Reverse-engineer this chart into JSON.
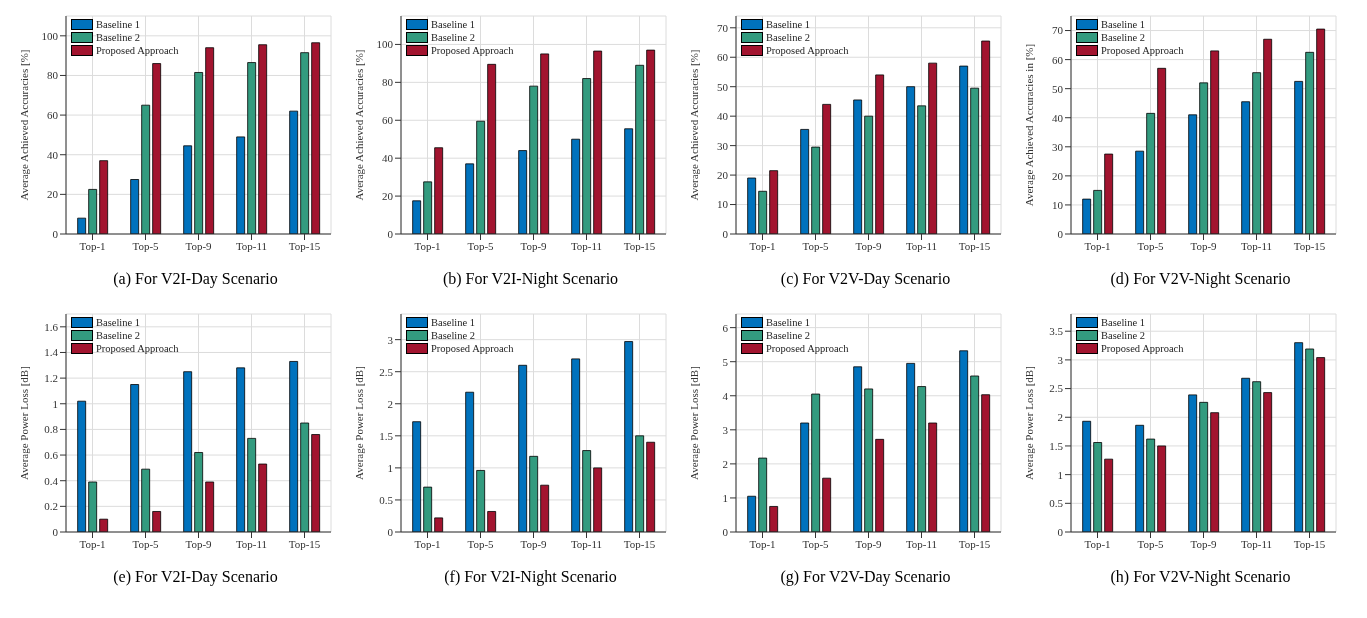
{
  "chart_data": [
    {
      "type": "bar",
      "title": "(a) For V2I-Day Scenario",
      "ylabel": "Average Achieved Accuracies [%]",
      "categories": [
        "Top-1",
        "Top-5",
        "Top-9",
        "Top-11",
        "Top-15"
      ],
      "ylim": [
        0,
        110
      ],
      "yticks": [
        0,
        20,
        40,
        60,
        80,
        100
      ],
      "grid": true,
      "legend": "top left",
      "series": [
        {
          "name": "Baseline 1",
          "color": "#0072bd",
          "values": [
            8,
            27.5,
            44.5,
            49,
            62
          ]
        },
        {
          "name": "Baseline 2",
          "color": "#339b7f",
          "values": [
            22.5,
            65,
            81.5,
            86.5,
            91.5
          ]
        },
        {
          "name": "Proposed Approach",
          "color": "#a2142f",
          "values": [
            37,
            86,
            94,
            95.5,
            96.5
          ]
        }
      ]
    },
    {
      "type": "bar",
      "title": "(b) For V2I-Night Scenario",
      "ylabel": "Average Achieved Accuracies [%]",
      "categories": [
        "Top-1",
        "Top-5",
        "Top-9",
        "Top-11",
        "Top-15"
      ],
      "ylim": [
        0,
        115
      ],
      "yticks": [
        0,
        20,
        40,
        60,
        80,
        100
      ],
      "grid": true,
      "legend": "top left",
      "series": [
        {
          "name": "Baseline 1",
          "color": "#0072bd",
          "values": [
            17.5,
            37,
            44,
            50,
            55.5
          ]
        },
        {
          "name": "Baseline 2",
          "color": "#339b7f",
          "values": [
            27.5,
            59.5,
            78,
            82,
            89
          ]
        },
        {
          "name": "Proposed Approach",
          "color": "#a2142f",
          "values": [
            45.5,
            89.5,
            95,
            96.5,
            97
          ]
        }
      ]
    },
    {
      "type": "bar",
      "title": "(c) For V2V-Day Scenario",
      "ylabel": "Average Achieved Accuracies [%]",
      "categories": [
        "Top-1",
        "Top-5",
        "Top-9",
        "Top-11",
        "Top-15"
      ],
      "ylim": [
        0,
        74
      ],
      "yticks": [
        0,
        10,
        20,
        30,
        40,
        50,
        60,
        70
      ],
      "grid": true,
      "legend": "top left",
      "series": [
        {
          "name": "Baseline 1",
          "color": "#0072bd",
          "values": [
            19,
            35.5,
            45.5,
            50,
            57
          ]
        },
        {
          "name": "Baseline 2",
          "color": "#339b7f",
          "values": [
            14.5,
            29.5,
            40,
            43.5,
            49.5
          ]
        },
        {
          "name": "Proposed Approach",
          "color": "#a2142f",
          "values": [
            21.5,
            44,
            54,
            58,
            65.5
          ]
        }
      ]
    },
    {
      "type": "bar",
      "title": "(d) For V2V-Night Scenario",
      "ylabel": "Average Achieved Accuracies in [%]",
      "categories": [
        "Top-1",
        "Top-5",
        "Top-9",
        "Top-11",
        "Top-15"
      ],
      "ylim": [
        0,
        75
      ],
      "yticks": [
        0,
        10,
        20,
        30,
        40,
        50,
        60,
        70
      ],
      "grid": true,
      "legend": "top left",
      "series": [
        {
          "name": "Baseline 1",
          "color": "#0072bd",
          "values": [
            12,
            28.5,
            41,
            45.5,
            52.5
          ]
        },
        {
          "name": "Baseline 2",
          "color": "#339b7f",
          "values": [
            15,
            41.5,
            52,
            55.5,
            62.5
          ]
        },
        {
          "name": "Proposed Approach",
          "color": "#a2142f",
          "values": [
            27.5,
            57,
            63,
            67,
            70.5
          ]
        }
      ]
    },
    {
      "type": "bar",
      "title": "(e) For V2I-Day Scenario",
      "ylabel": "Average Power Loss [dB]",
      "categories": [
        "Top-1",
        "Top-5",
        "Top-9",
        "Top-11",
        "Top-15"
      ],
      "ylim": [
        0,
        1.7
      ],
      "yticks": [
        0,
        0.2,
        0.4,
        0.6,
        0.8,
        1,
        1.2,
        1.4,
        1.6
      ],
      "grid": true,
      "legend": "top left",
      "series": [
        {
          "name": "Baseline 1",
          "color": "#0072bd",
          "values": [
            1.02,
            1.15,
            1.25,
            1.28,
            1.33
          ]
        },
        {
          "name": "Baseline 2",
          "color": "#339b7f",
          "values": [
            0.39,
            0.49,
            0.62,
            0.73,
            0.85
          ]
        },
        {
          "name": "Proposed Approach",
          "color": "#a2142f",
          "values": [
            0.1,
            0.16,
            0.39,
            0.53,
            0.76
          ]
        }
      ]
    },
    {
      "type": "bar",
      "title": "(f) For V2I-Night Scenario",
      "ylabel": "Average Power Loss [dB]",
      "categories": [
        "Top-1",
        "Top-5",
        "Top-9",
        "Top-11",
        "Top-15"
      ],
      "ylim": [
        0,
        3.4
      ],
      "yticks": [
        0,
        0.5,
        1,
        1.5,
        2,
        2.5,
        3
      ],
      "grid": true,
      "legend": "top left",
      "series": [
        {
          "name": "Baseline 1",
          "color": "#0072bd",
          "values": [
            1.72,
            2.18,
            2.6,
            2.7,
            2.97
          ]
        },
        {
          "name": "Baseline 2",
          "color": "#339b7f",
          "values": [
            0.7,
            0.96,
            1.18,
            1.27,
            1.5
          ]
        },
        {
          "name": "Proposed Approach",
          "color": "#a2142f",
          "values": [
            0.22,
            0.32,
            0.73,
            1.0,
            1.4
          ]
        }
      ]
    },
    {
      "type": "bar",
      "title": "(g) For V2V-Day Scenario",
      "ylabel": "Average Power Loss [dB]",
      "categories": [
        "Top-1",
        "Top-5",
        "Top-9",
        "Top-11",
        "Top-15"
      ],
      "ylim": [
        0,
        6.4
      ],
      "yticks": [
        0,
        1,
        2,
        3,
        4,
        5,
        6
      ],
      "grid": true,
      "legend": "top left",
      "series": [
        {
          "name": "Baseline 1",
          "color": "#0072bd",
          "values": [
            1.05,
            3.2,
            4.85,
            4.95,
            5.32
          ]
        },
        {
          "name": "Baseline 2",
          "color": "#339b7f",
          "values": [
            2.17,
            4.05,
            4.2,
            4.27,
            4.58
          ]
        },
        {
          "name": "Proposed Approach",
          "color": "#a2142f",
          "values": [
            0.75,
            1.58,
            2.72,
            3.2,
            4.03
          ]
        }
      ]
    },
    {
      "type": "bar",
      "title": "(h) For V2V-Night Scenario",
      "ylabel": "Average Power Loss [dB]",
      "categories": [
        "Top-1",
        "Top-5",
        "Top-9",
        "Top-11",
        "Top-15"
      ],
      "ylim": [
        0,
        3.8
      ],
      "yticks": [
        0,
        0.5,
        1,
        1.5,
        2,
        2.5,
        3,
        3.5
      ],
      "grid": true,
      "legend": "top left",
      "series": [
        {
          "name": "Baseline 1",
          "color": "#0072bd",
          "values": [
            1.93,
            1.86,
            2.39,
            2.68,
            3.3
          ]
        },
        {
          "name": "Baseline 2",
          "color": "#339b7f",
          "values": [
            1.56,
            1.62,
            2.26,
            2.62,
            3.19
          ]
        },
        {
          "name": "Proposed Approach",
          "color": "#a2142f",
          "values": [
            1.27,
            1.5,
            2.08,
            2.43,
            3.04
          ]
        }
      ]
    }
  ]
}
